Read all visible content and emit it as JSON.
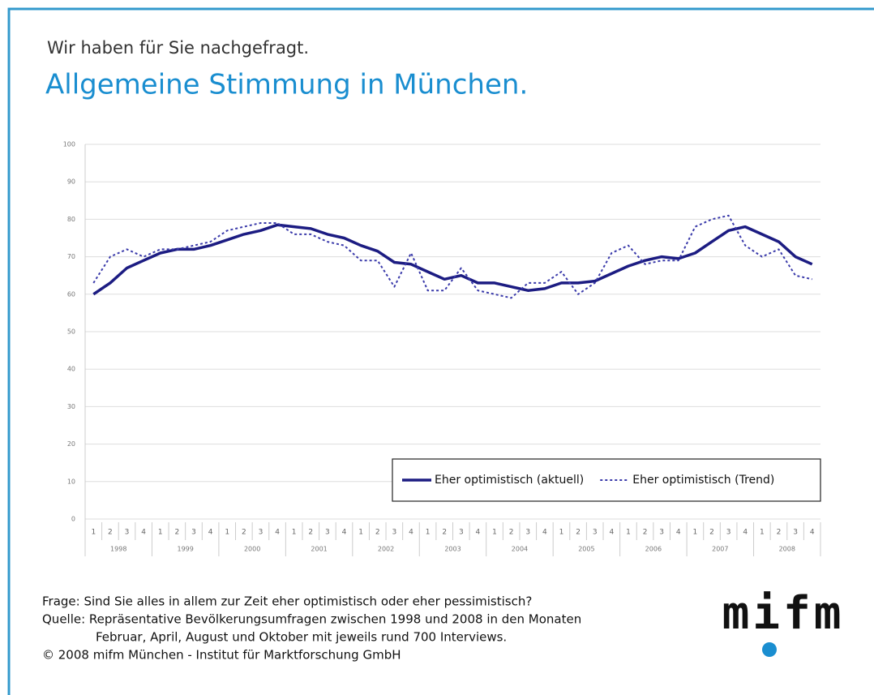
{
  "chart_data": {
    "type": "line",
    "subtitle": "Wir haben für Sie nachgefragt.",
    "title": "Allgemeine Stimmung in München.",
    "categories": [
      "1",
      "2",
      "3",
      "4",
      "1",
      "2",
      "3",
      "4",
      "1",
      "2",
      "3",
      "4",
      "1",
      "2",
      "3",
      "4",
      "1",
      "2",
      "3",
      "4",
      "1",
      "2",
      "3",
      "4",
      "1",
      "2",
      "3",
      "4",
      "1",
      "2",
      "3",
      "4",
      "1",
      "2",
      "3",
      "4",
      "1",
      "2",
      "3",
      "4",
      "1",
      "2",
      "3",
      "4"
    ],
    "years": [
      "1998",
      "1999",
      "2000",
      "2001",
      "2002",
      "2003",
      "2004",
      "2005",
      "2006",
      "2007",
      "2008"
    ],
    "ylim": [
      0,
      100
    ],
    "yticks": [
      0,
      10,
      20,
      30,
      40,
      50,
      60,
      70,
      80,
      90,
      100
    ],
    "grid": true,
    "legend": "lower right",
    "series": [
      {
        "name": "Eher optimistisch (aktuell)",
        "color": "#1c1c82",
        "line_style": "solid",
        "values": [
          60,
          63,
          67,
          69,
          71,
          72,
          72,
          73,
          74.5,
          76,
          77,
          78.5,
          78,
          77.5,
          76,
          75,
          73,
          71.5,
          68.5,
          68,
          66,
          64,
          65,
          63,
          63,
          62,
          61,
          61.5,
          63,
          63,
          63.5,
          65.5,
          67.5,
          69,
          70,
          69.5,
          71,
          74,
          77,
          78,
          76,
          74,
          70,
          68
        ]
      },
      {
        "name": "Eher optimistisch (Trend)",
        "color": "#3a3aaa",
        "line_style": "dotted",
        "values": [
          63,
          70,
          72,
          70,
          72,
          72,
          73,
          74,
          77,
          78,
          79,
          79,
          76,
          76,
          74,
          73,
          69,
          69,
          62,
          71,
          61,
          61,
          67,
          61,
          60,
          59,
          63,
          63,
          66,
          60,
          63,
          71,
          73,
          68,
          69,
          69,
          78,
          80,
          81,
          73,
          70,
          72,
          65,
          64
        ]
      }
    ],
    "notes": [
      "Frage: Sind Sie alles in allem zur Zeit eher optimistisch oder eher pessimistisch?",
      "Quelle: Repräsentative Bevölkerungsumfragen zwischen 1998 und 2008 in den Monaten",
      "Februar, April, August und Oktober mit jeweils rund 700 Interviews.",
      "© 2008 mifm München - Institut für Marktforschung GmbH"
    ],
    "logo": "mifm"
  }
}
